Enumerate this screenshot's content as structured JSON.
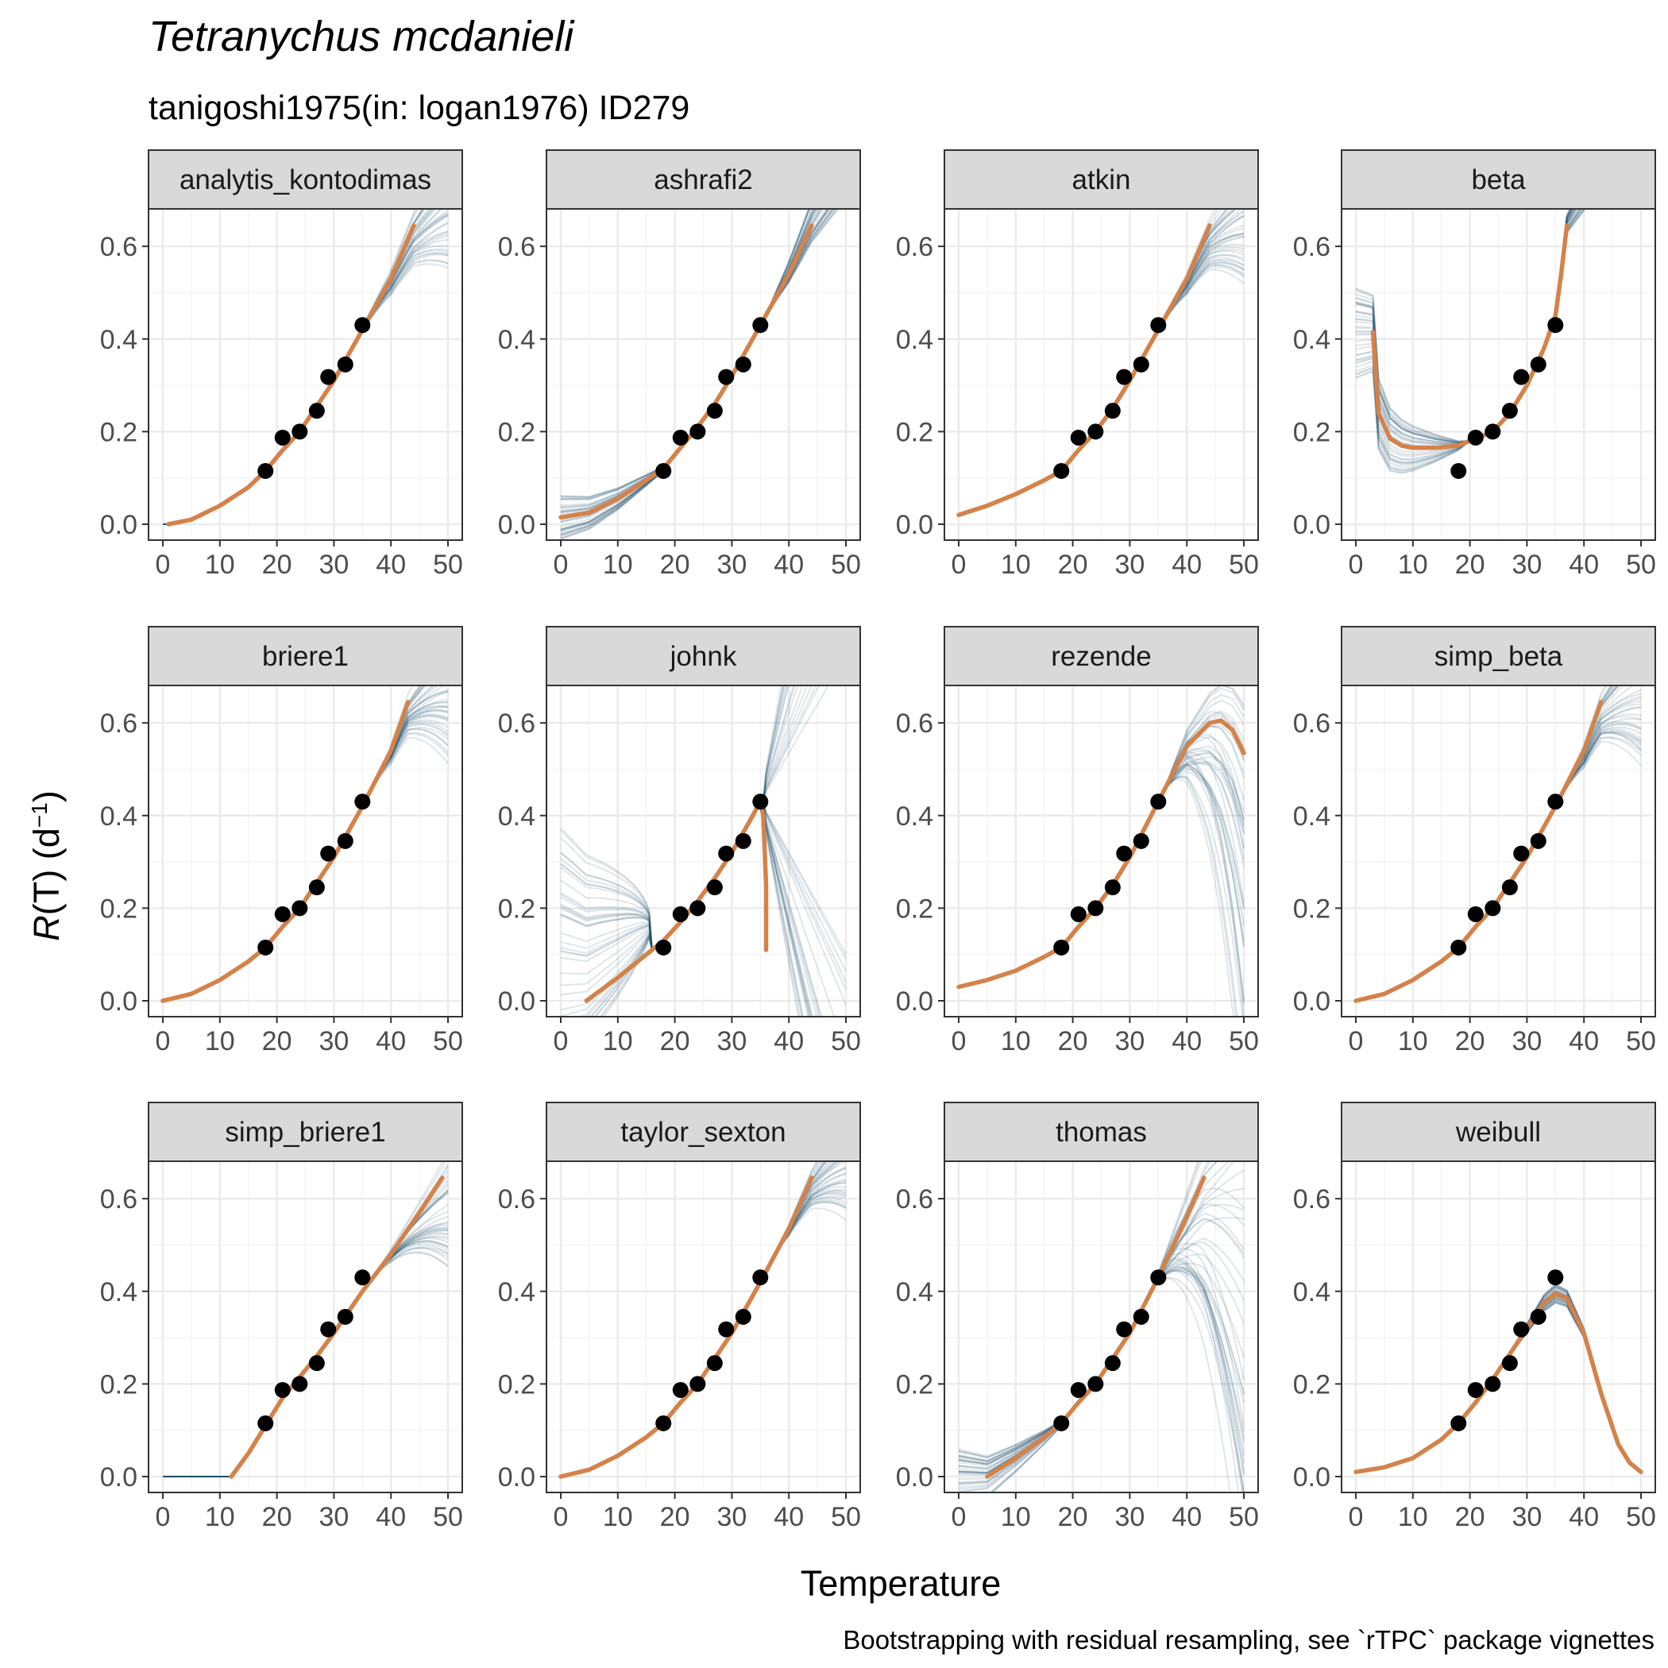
{
  "title": "Tetranychus mcdanieli",
  "subtitle": "tanigoshi1975(in: logan1976) ID279",
  "caption": "Bootstrapping with residual resampling, see `rTPC` package vignettes",
  "colors": {
    "fit": "#D4824A",
    "bootstrap": "#1F4E67",
    "points": "#000000",
    "strip_bg": "#D9D9D9",
    "grid_major": "#EBEBEB",
    "grid_minor": "#F4F4F4",
    "panel_border": "#333333"
  },
  "chart_data": {
    "type": "line",
    "layout": "facet grid 3 rows x 4 columns",
    "xlabel": "Temperature",
    "ylabel_parts": {
      "italic": "R",
      "rest": "(T) (d",
      "superscript": "−1",
      "close": ")"
    },
    "xlim": [
      0,
      50
    ],
    "ylim": [
      0,
      0.65
    ],
    "x_ticks": [
      0,
      10,
      20,
      30,
      40,
      50
    ],
    "y_ticks": [
      0,
      0.2,
      0.4,
      0.6
    ],
    "x_tick_labels": [
      "0",
      "10",
      "20",
      "30",
      "40",
      "50"
    ],
    "y_tick_labels": [
      "0.0",
      "0.2",
      "0.4",
      "0.6"
    ],
    "grid": true,
    "observed_points": [
      {
        "x": 18,
        "y": 0.115
      },
      {
        "x": 21,
        "y": 0.187
      },
      {
        "x": 24,
        "y": 0.2
      },
      {
        "x": 27,
        "y": 0.245
      },
      {
        "x": 29,
        "y": 0.318
      },
      {
        "x": 32,
        "y": 0.345
      },
      {
        "x": 35,
        "y": 0.43
      }
    ],
    "panels": [
      {
        "label": "analytis_kontodimas",
        "fit_x": [
          1,
          5,
          10,
          15,
          18,
          21,
          24,
          27,
          30,
          35,
          40,
          44
        ],
        "fit_y": [
          0,
          0.01,
          0.04,
          0.08,
          0.115,
          0.16,
          0.2,
          0.255,
          0.31,
          0.42,
          0.53,
          0.645
        ],
        "boot_spread": 0.1,
        "boot_start": 33,
        "boot_mode": "droop"
      },
      {
        "label": "ashrafi2",
        "fit_x": [
          0,
          5,
          10,
          15,
          18,
          21,
          24,
          27,
          30,
          35,
          40,
          44
        ],
        "fit_y": [
          0.015,
          0.025,
          0.055,
          0.095,
          0.12,
          0.165,
          0.21,
          0.26,
          0.32,
          0.43,
          0.54,
          0.645
        ],
        "boot_spread": 0.12,
        "boot_start": 36,
        "boot_mode": "rise",
        "boot_low_spread": 0.05
      },
      {
        "label": "atkin",
        "fit_x": [
          0,
          5,
          10,
          15,
          18,
          21,
          24,
          27,
          30,
          35,
          40,
          44
        ],
        "fit_y": [
          0.02,
          0.04,
          0.065,
          0.095,
          0.115,
          0.16,
          0.2,
          0.25,
          0.31,
          0.42,
          0.53,
          0.645
        ],
        "boot_spread": 0.12,
        "boot_start": 34,
        "boot_mode": "droop"
      },
      {
        "label": "beta",
        "fit_x": [
          3,
          4,
          6,
          8,
          10,
          14,
          18,
          21,
          24,
          27,
          30,
          33,
          35,
          36,
          37
        ],
        "fit_y": [
          0.415,
          0.24,
          0.185,
          0.17,
          0.165,
          0.165,
          0.17,
          0.185,
          0.2,
          0.24,
          0.3,
          0.38,
          0.45,
          0.54,
          0.645
        ],
        "boot_spread": 0.1,
        "boot_start": 33,
        "boot_mode": "rise",
        "boot_low_spread": 0.1
      },
      {
        "label": "briere1",
        "fit_x": [
          0,
          5,
          10,
          15,
          18,
          21,
          24,
          27,
          30,
          35,
          40,
          43
        ],
        "fit_y": [
          0,
          0.015,
          0.045,
          0.085,
          0.115,
          0.16,
          0.2,
          0.255,
          0.31,
          0.42,
          0.54,
          0.645
        ],
        "boot_spread": 0.15,
        "boot_start": 35,
        "boot_mode": "droop"
      },
      {
        "label": "johnk",
        "fit_x": [
          4.5,
          10,
          15,
          18,
          21,
          24,
          27,
          30,
          33,
          35,
          35.5,
          36,
          36
        ],
        "fit_y": [
          0,
          0.05,
          0.1,
          0.13,
          0.17,
          0.215,
          0.265,
          0.32,
          0.385,
          0.43,
          0.4,
          0.25,
          0.11
        ],
        "boot_spread": 0.12,
        "boot_start": 35,
        "boot_mode": "johnk"
      },
      {
        "label": "rezende",
        "fit_x": [
          0,
          5,
          10,
          15,
          18,
          21,
          24,
          27,
          30,
          35,
          40,
          44,
          46,
          48,
          50
        ],
        "fit_y": [
          0.03,
          0.045,
          0.065,
          0.095,
          0.115,
          0.16,
          0.2,
          0.25,
          0.31,
          0.43,
          0.55,
          0.6,
          0.605,
          0.585,
          0.535
        ],
        "boot_spread": 0.2,
        "boot_start": 36,
        "boot_mode": "crash"
      },
      {
        "label": "simp_beta",
        "fit_x": [
          0,
          5,
          10,
          15,
          18,
          21,
          24,
          27,
          30,
          35,
          40,
          43
        ],
        "fit_y": [
          0,
          0.015,
          0.045,
          0.085,
          0.115,
          0.16,
          0.2,
          0.255,
          0.31,
          0.42,
          0.54,
          0.645
        ],
        "boot_spread": 0.14,
        "boot_start": 34,
        "boot_mode": "droop"
      },
      {
        "label": "simp_briere1",
        "fit_x": [
          12,
          15,
          18,
          21,
          24,
          27,
          30,
          35,
          40,
          45,
          49
        ],
        "fit_y": [
          0,
          0.05,
          0.11,
          0.17,
          0.215,
          0.26,
          0.31,
          0.4,
          0.48,
          0.57,
          0.645
        ],
        "boot_spread": 0.14,
        "boot_start": 36,
        "boot_mode": "droop"
      },
      {
        "label": "taylor_sexton",
        "fit_x": [
          0,
          5,
          10,
          15,
          18,
          21,
          24,
          27,
          30,
          35,
          40,
          44
        ],
        "fit_y": [
          0,
          0.015,
          0.045,
          0.085,
          0.115,
          0.16,
          0.2,
          0.255,
          0.31,
          0.42,
          0.535,
          0.645
        ],
        "boot_spread": 0.14,
        "boot_start": 36,
        "boot_mode": "droop"
      },
      {
        "label": "thomas",
        "fit_x": [
          5,
          10,
          15,
          18,
          21,
          24,
          27,
          30,
          35,
          40,
          43
        ],
        "fit_y": [
          0,
          0.04,
          0.085,
          0.115,
          0.16,
          0.2,
          0.255,
          0.31,
          0.43,
          0.56,
          0.645
        ],
        "boot_spread": 0.2,
        "boot_start": 34,
        "boot_mode": "crash",
        "boot_low_spread": 0.06
      },
      {
        "label": "weibull",
        "fit_x": [
          0,
          5,
          10,
          15,
          18,
          21,
          24,
          27,
          30,
          33,
          35,
          37,
          40,
          43,
          46,
          48,
          50
        ],
        "fit_y": [
          0.01,
          0.02,
          0.04,
          0.08,
          0.115,
          0.16,
          0.21,
          0.265,
          0.32,
          0.375,
          0.395,
          0.385,
          0.31,
          0.18,
          0.07,
          0.03,
          0.01
        ],
        "boot_spread": 0.04,
        "boot_start": 30,
        "boot_mode": "weibull"
      }
    ]
  }
}
